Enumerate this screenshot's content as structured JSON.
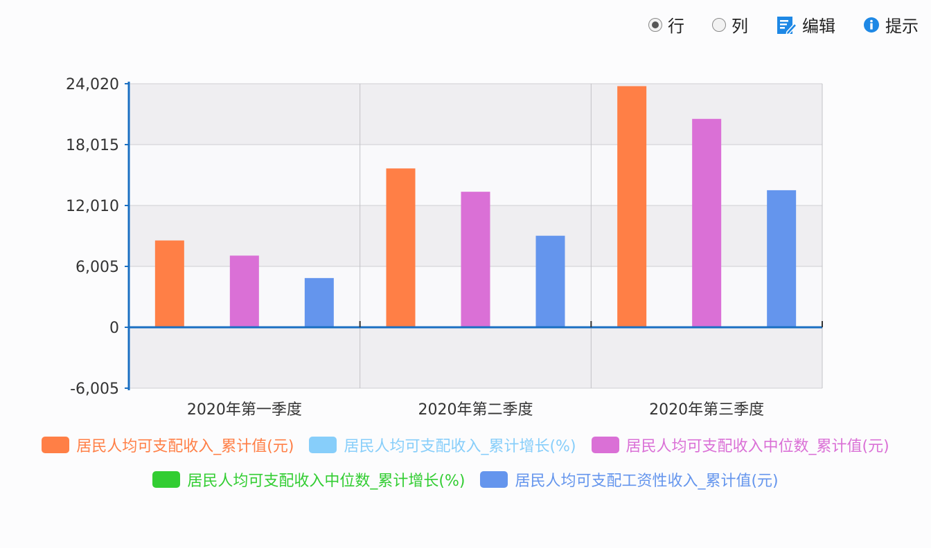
{
  "toolbar": {
    "row_label": "行",
    "col_label": "列",
    "edit_label": "编辑",
    "tip_label": "提示",
    "selected": "row",
    "edit_icon": "edit-icon",
    "tip_icon": "info-icon",
    "accent_color": "#1e88e5"
  },
  "chart_data": {
    "type": "bar",
    "categories": [
      "2020年第一季度",
      "2020年第二季度",
      "2020年第三季度"
    ],
    "ylim": [
      -6005,
      24020
    ],
    "yticks": [
      24020,
      18015,
      12010,
      6005,
      0,
      -6005
    ],
    "ytick_labels": [
      "24,020",
      "18,015",
      "12,010",
      "6,005",
      "0",
      "-6,005"
    ],
    "grid": true,
    "legend_position": "bottom",
    "series": [
      {
        "name": "居民人均可支配收入_累计值(元)",
        "color": "#ff7f46",
        "values": [
          8561,
          15666,
          23781
        ]
      },
      {
        "name": "居民人均可支配收入_累计增长(%)",
        "color": "#87cefa",
        "values": [
          null,
          null,
          null
        ]
      },
      {
        "name": "居民人均可支配收入中位数_累计值(元)",
        "color": "#da70d6",
        "values": [
          7069,
          13366,
          20554
        ]
      },
      {
        "name": "居民人均可支配收入中位数_累计增长(%)",
        "color": "#32cd32",
        "values": [
          null,
          null,
          null
        ]
      },
      {
        "name": "居民人均可支配工资性收入_累计值(元)",
        "color": "#6495ed",
        "values": [
          4855,
          9028,
          13517
        ]
      }
    ]
  }
}
